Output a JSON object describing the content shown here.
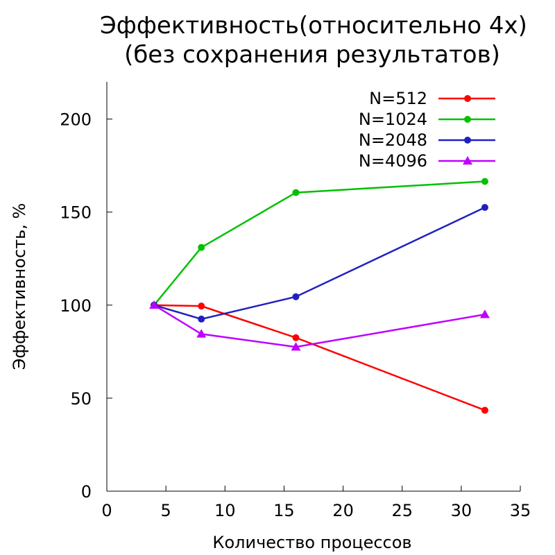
{
  "chart_data": {
    "type": "line",
    "title": "Эффективность(относительно 4x)",
    "subtitle": "(без сохранения результатов)",
    "xlabel": "Количество процессов",
    "ylabel": "Эффективность, %",
    "xlim": [
      0,
      35
    ],
    "ylim": [
      0,
      220
    ],
    "xticks": [
      0,
      5,
      10,
      15,
      20,
      25,
      30,
      35
    ],
    "yticks": [
      0,
      50,
      100,
      150,
      200
    ],
    "grid": false,
    "legend_position": "top-right",
    "series": [
      {
        "name": "N=512",
        "color": "#ff0000",
        "marker": "circle",
        "x": [
          4,
          8,
          16,
          32
        ],
        "y": [
          100,
          99.5,
          82.5,
          43.5
        ]
      },
      {
        "name": "N=1024",
        "color": "#00c000",
        "marker": "circle",
        "x": [
          4,
          8,
          16,
          32
        ],
        "y": [
          100,
          131,
          160.5,
          166.5
        ]
      },
      {
        "name": "N=2048",
        "color": "#2020c0",
        "marker": "circle",
        "x": [
          4,
          8,
          16,
          32
        ],
        "y": [
          100,
          92.5,
          104.5,
          152.5
        ]
      },
      {
        "name": "N=4096",
        "color": "#c000ff",
        "marker": "triangle",
        "x": [
          4,
          8,
          16,
          32
        ],
        "y": [
          100,
          84.5,
          77.5,
          95
        ]
      }
    ]
  }
}
